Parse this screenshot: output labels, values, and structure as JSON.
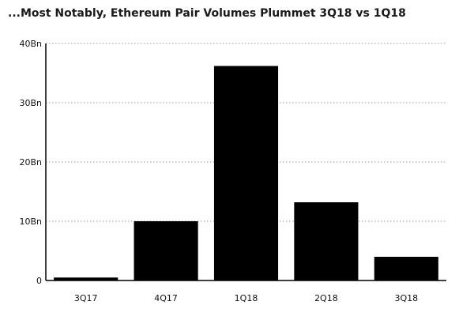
{
  "chart_data": {
    "type": "bar",
    "title": "...Most Notably, Ethereum Pair Volumes Plummet 3Q18 vs 1Q18",
    "categories": [
      "3Q17",
      "4Q17",
      "1Q18",
      "2Q18",
      "3Q18"
    ],
    "values": [
      0.5,
      10,
      36.2,
      13.2,
      4
    ],
    "ylim": [
      0,
      40
    ],
    "yticks": [
      0,
      10,
      20,
      30,
      40
    ],
    "ytick_labels": [
      "0",
      "10Bn",
      "20Bn",
      "30Bn",
      "40Bn"
    ],
    "grid": true,
    "legend": "none",
    "bar_color": "#000000"
  }
}
